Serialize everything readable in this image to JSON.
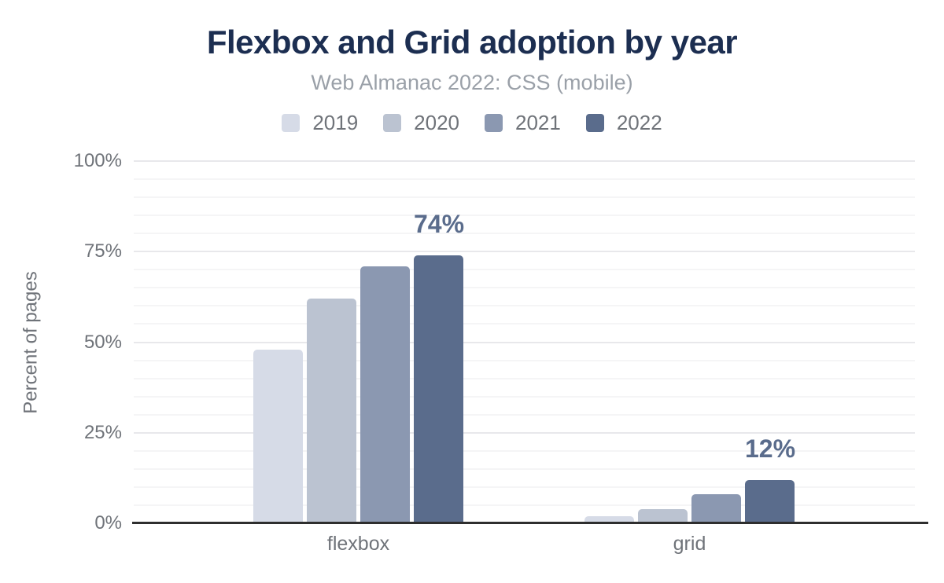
{
  "header": {
    "title": "Flexbox and Grid adoption by year",
    "subtitle": "Web Almanac 2022: CSS (mobile)"
  },
  "colors": {
    "title_text": "#1c2e51",
    "subtitle_text": "#9aa0a8",
    "axis_text": "#6f7379",
    "annotation_text": "#5a6c8c",
    "axis_line": "#2e2e2e",
    "grid_major": "#e8e8eb",
    "grid_minor": "#f5f5f6",
    "series_colors": [
      "#d6dbe7",
      "#bbc3d1",
      "#8b98b1",
      "#5a6c8c"
    ]
  },
  "chart_data": {
    "type": "bar",
    "title": "Flexbox and Grid adoption by year",
    "subtitle": "Web Almanac 2022: CSS (mobile)",
    "categories": [
      "flexbox",
      "grid"
    ],
    "series": [
      {
        "name": "2019",
        "color": "#d6dbe7",
        "values": [
          48,
          2
        ]
      },
      {
        "name": "2020",
        "color": "#bbc3d1",
        "values": [
          62,
          4
        ]
      },
      {
        "name": "2021",
        "color": "#8b98b1",
        "values": [
          71,
          8
        ]
      },
      {
        "name": "2022",
        "color": "#5a6c8c",
        "values": [
          74,
          12
        ]
      }
    ],
    "annotations": [
      {
        "category": "flexbox",
        "series": "2022",
        "label": "74%"
      },
      {
        "category": "grid",
        "series": "2022",
        "label": "12%"
      }
    ],
    "xlabel": "",
    "ylabel": "Percent of pages",
    "ylim": [
      0,
      100
    ],
    "yticks": [
      {
        "pct": 0,
        "label": "0%"
      },
      {
        "pct": 25,
        "label": "25%"
      },
      {
        "pct": 50,
        "label": "50%"
      },
      {
        "pct": 75,
        "label": "75%"
      },
      {
        "pct": 100,
        "label": "100%"
      }
    ],
    "grid": "horizontal; minor every 5%, major every 25%",
    "legend_position": "top"
  }
}
